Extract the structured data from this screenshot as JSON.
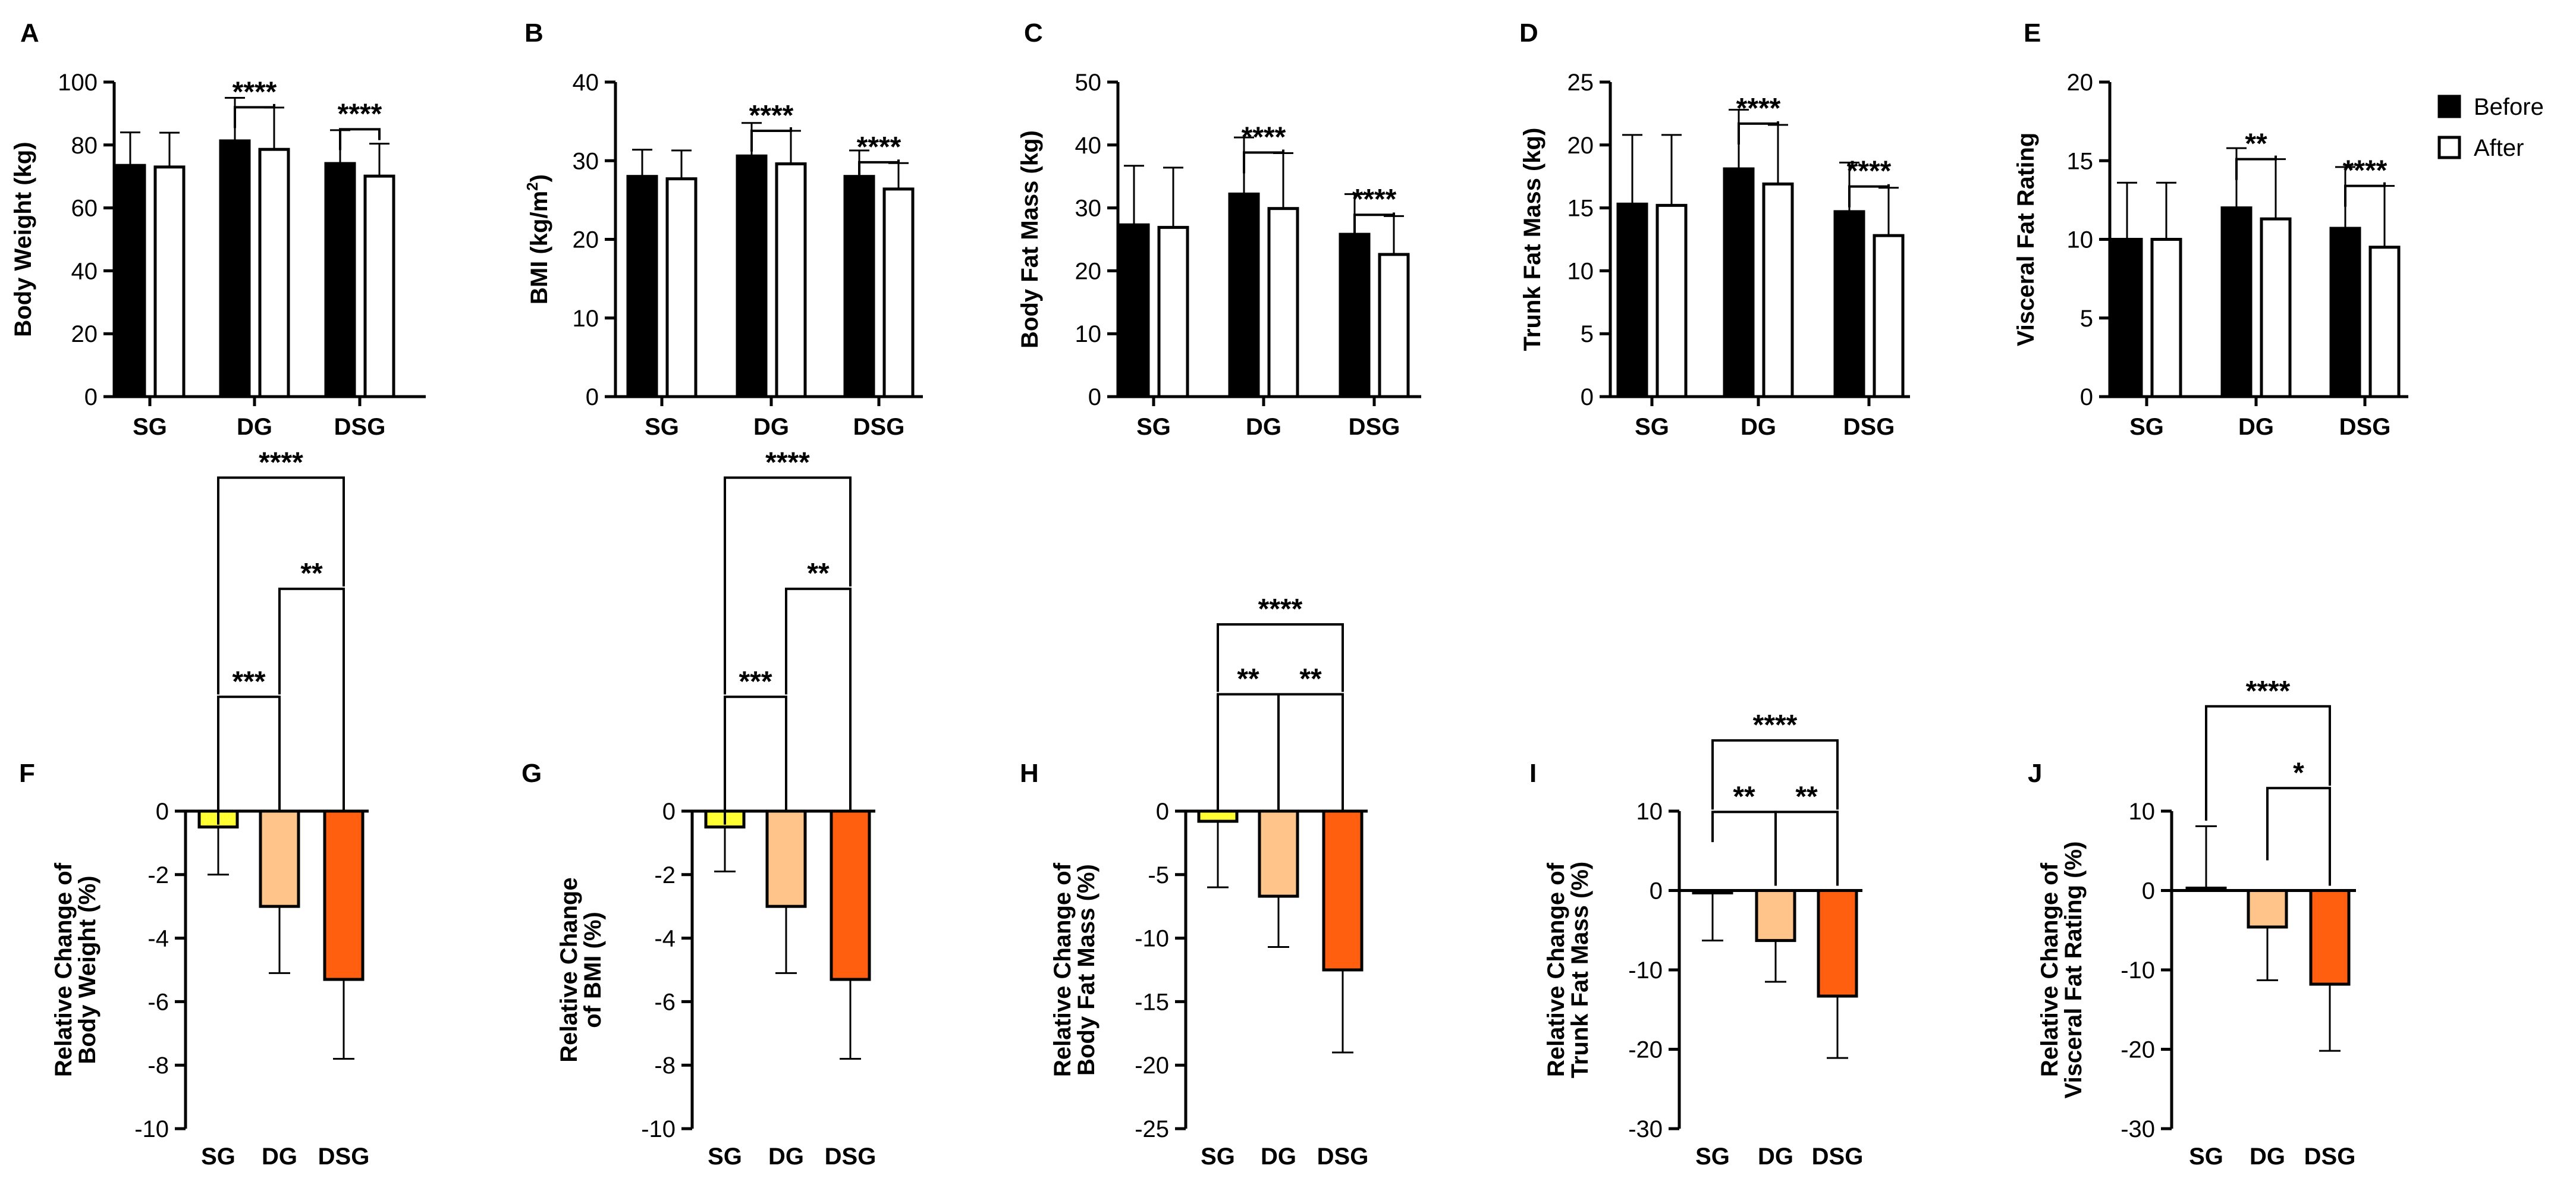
{
  "legend": {
    "items": [
      {
        "label": "Before",
        "fill": "#000000"
      },
      {
        "label": "After",
        "fill": "#ffffff"
      }
    ]
  },
  "colors": {
    "SG": "#ffff33",
    "DG": "#ffc48a",
    "DSG": "#ff5f0f",
    "axis": "#000000"
  },
  "chart_data": [
    {
      "panel": "A",
      "type": "bar",
      "categories": [
        "SG",
        "DG",
        "DSG"
      ],
      "ylabel": "Body Weight (kg)",
      "ylim": [
        0,
        100
      ],
      "yticks": [
        0,
        20,
        40,
        60,
        80,
        100
      ],
      "series": [
        {
          "name": "Before",
          "values": [
            73.5,
            81.3,
            74.1
          ],
          "errors": [
            10.5,
            13.7,
            10.6
          ]
        },
        {
          "name": "After",
          "values": [
            73.0,
            78.6,
            70.1
          ],
          "errors": [
            10.9,
            13.3,
            10.3
          ]
        }
      ],
      "annotations": [
        {
          "label": "****",
          "from": 1,
          "to": 1,
          "level": 92
        },
        {
          "label": "****",
          "from": 2,
          "to": 2,
          "level": 85
        }
      ]
    },
    {
      "panel": "B",
      "type": "bar",
      "categories": [
        "SG",
        "DG",
        "DSG"
      ],
      "ylabel_main": "BMI (kg/m",
      "ylabel_sup": "2",
      "ylabel_end": ")",
      "ylim": [
        0,
        40
      ],
      "yticks": [
        0,
        10,
        20,
        30,
        40
      ],
      "series": [
        {
          "name": "Before",
          "values": [
            28.0,
            30.6,
            28.0
          ],
          "errors": [
            3.4,
            4.2,
            3.3
          ]
        },
        {
          "name": "After",
          "values": [
            27.7,
            29.6,
            26.4
          ],
          "errors": [
            3.6,
            4.2,
            3.3
          ]
        }
      ],
      "annotations": [
        {
          "label": "****",
          "from": 1,
          "to": 1,
          "level": 33.8
        },
        {
          "label": "****",
          "from": 2,
          "to": 2,
          "level": 29.8
        }
      ]
    },
    {
      "panel": "C",
      "type": "bar",
      "categories": [
        "SG",
        "DG",
        "DSG"
      ],
      "ylabel": "Body Fat Mass (kg)",
      "ylim": [
        0,
        50
      ],
      "yticks": [
        0,
        10,
        20,
        30,
        40,
        50
      ],
      "series": [
        {
          "name": "Before",
          "values": [
            27.3,
            32.2,
            25.8
          ],
          "errors": [
            9.4,
            9.0,
            6.4
          ]
        },
        {
          "name": "After",
          "values": [
            26.9,
            29.9,
            22.6
          ],
          "errors": [
            9.5,
            8.8,
            6.1
          ]
        }
      ],
      "annotations": [
        {
          "label": "****",
          "from": 1,
          "to": 1,
          "level": 38.8
        },
        {
          "label": "****",
          "from": 2,
          "to": 2,
          "level": 28.9
        }
      ]
    },
    {
      "panel": "D",
      "type": "bar",
      "categories": [
        "SG",
        "DG",
        "DSG"
      ],
      "ylabel": "Trunk Fat Mass (kg)",
      "ylim": [
        0,
        25
      ],
      "yticks": [
        0,
        5,
        10,
        15,
        20,
        25
      ],
      "series": [
        {
          "name": "Before",
          "values": [
            15.3,
            18.1,
            14.7
          ],
          "errors": [
            5.5,
            4.7,
            3.9
          ]
        },
        {
          "name": "After",
          "values": [
            15.2,
            16.9,
            12.8
          ],
          "errors": [
            5.6,
            4.7,
            3.8
          ]
        }
      ],
      "annotations": [
        {
          "label": "****",
          "from": 1,
          "to": 1,
          "level": 21.7
        },
        {
          "label": "****",
          "from": 2,
          "to": 2,
          "level": 16.7
        }
      ]
    },
    {
      "panel": "E",
      "type": "bar",
      "categories": [
        "SG",
        "DG",
        "DSG"
      ],
      "ylabel": "Visceral Fat Rating",
      "ylim": [
        0,
        20
      ],
      "yticks": [
        0,
        5,
        10,
        15,
        20
      ],
      "series": [
        {
          "name": "Before",
          "values": [
            10.0,
            12.0,
            10.7
          ],
          "errors": [
            3.6,
            3.8,
            3.9
          ]
        },
        {
          "name": "After",
          "values": [
            10.0,
            11.3,
            9.5
          ],
          "errors": [
            3.6,
            3.8,
            3.9
          ]
        }
      ],
      "annotations": [
        {
          "label": "**",
          "from": 1,
          "to": 1,
          "level": 15.1
        },
        {
          "label": "****",
          "from": 2,
          "to": 2,
          "level": 13.4
        }
      ]
    },
    {
      "panel": "F",
      "type": "bar",
      "categories": [
        "SG",
        "DG",
        "DSG"
      ],
      "ylabel": [
        "Relative Change of",
        "Body Weight (%)"
      ],
      "ylim": [
        -10,
        0
      ],
      "yticks": [
        0,
        -2,
        -4,
        -6,
        -8,
        -10
      ],
      "values": [
        -0.5,
        -3.0,
        -5.3
      ],
      "errors": [
        1.5,
        2.1,
        2.5
      ],
      "annotations": [
        {
          "label": "***",
          "from": 0,
          "to": 1,
          "level": 3.6,
          "leg_to": [
            -0.5,
            -0.1
          ]
        },
        {
          "label": "**",
          "from": 1,
          "to": 2,
          "level": 7.0,
          "leg_to": [
            3.6,
            -0.1
          ]
        },
        {
          "label": "****",
          "from": 0,
          "to": 2,
          "level": 10.5,
          "leg_to": [
            3.6,
            7.0
          ]
        }
      ]
    },
    {
      "panel": "G",
      "type": "bar",
      "categories": [
        "SG",
        "DG",
        "DSG"
      ],
      "ylabel": [
        "Relative Change",
        "of BMI (%)"
      ],
      "ylim": [
        -10,
        0
      ],
      "yticks": [
        0,
        -2,
        -4,
        -6,
        -8,
        -10
      ],
      "values": [
        -0.5,
        -3.0,
        -5.3
      ],
      "errors": [
        1.4,
        2.1,
        2.5
      ],
      "annotations": [
        {
          "label": "***",
          "from": 0,
          "to": 1,
          "level": 3.6,
          "leg_to": [
            -0.5,
            -0.1
          ]
        },
        {
          "label": "**",
          "from": 1,
          "to": 2,
          "level": 7.0,
          "leg_to": [
            3.6,
            -0.1
          ]
        },
        {
          "label": "****",
          "from": 0,
          "to": 2,
          "level": 10.5,
          "leg_to": [
            3.6,
            7.0
          ]
        }
      ]
    },
    {
      "panel": "H",
      "type": "bar",
      "categories": [
        "SG",
        "DG",
        "DSG"
      ],
      "ylabel": [
        "Relative Change of",
        "Body Fat Mass (%)"
      ],
      "ylim": [
        -25,
        0
      ],
      "yticks": [
        0,
        -5,
        -10,
        -15,
        -20,
        -25
      ],
      "values": [
        -0.8,
        -6.7,
        -12.5
      ],
      "errors": [
        5.2,
        4.0,
        6.5
      ],
      "annotations": [
        {
          "label": "**",
          "from": 0,
          "to": 1,
          "level": 9.2,
          "leg_to": [
            -0.3,
            -0.3
          ]
        },
        {
          "label": "**",
          "from": 1,
          "to": 2,
          "level": 9.2,
          "leg_to": [
            -0.3,
            -0.3
          ]
        },
        {
          "label": "****",
          "from": 0,
          "to": 2,
          "level": 14.7,
          "leg_to": [
            9.2,
            9.2
          ]
        }
      ]
    },
    {
      "panel": "I",
      "type": "bar",
      "categories": [
        "SG",
        "DG",
        "DSG"
      ],
      "ylabel": [
        "Relative Change of",
        "Trunk Fat Mass (%)"
      ],
      "ylim": [
        -30,
        10
      ],
      "yticks": [
        10,
        0,
        -10,
        -20,
        -30
      ],
      "values": [
        -0.3,
        -6.3,
        -13.3
      ],
      "errors": [
        6.0,
        5.2,
        7.8
      ],
      "annotations": [
        {
          "label": "**",
          "from": 0,
          "to": 1,
          "level": 9.9,
          "leg_to": [
            5.8,
            0.3
          ]
        },
        {
          "label": "**",
          "from": 1,
          "to": 2,
          "level": 9.9,
          "leg_to": [
            0.3,
            0.3
          ]
        },
        {
          "label": "****",
          "from": 0,
          "to": 2,
          "level": 18.9,
          "leg_to": [
            9.9,
            9.9
          ]
        }
      ]
    },
    {
      "panel": "J",
      "type": "bar",
      "categories": [
        "SG",
        "DG",
        "DSG"
      ],
      "ylabel": [
        "Relative Change of",
        "Visceral Fat Rating (%)"
      ],
      "ylim": [
        -30,
        10
      ],
      "yticks": [
        10,
        0,
        -10,
        -20,
        -30
      ],
      "values": [
        0.3,
        -4.6,
        -11.8
      ],
      "errors": [
        7.8,
        6.7,
        8.4
      ],
      "annotations": [
        {
          "label": "*",
          "from": 1,
          "to": 2,
          "level": 12.9,
          "leg_to": [
            3.5,
            0.3
          ]
        },
        {
          "label": "****",
          "from": 0,
          "to": 2,
          "level": 23.2,
          "leg_to": [
            8.5,
            12.9
          ]
        }
      ]
    }
  ]
}
